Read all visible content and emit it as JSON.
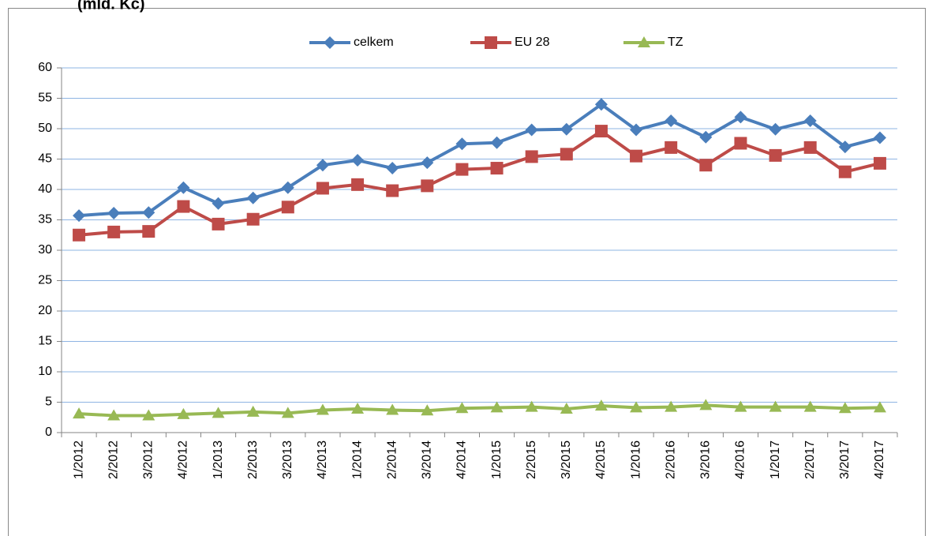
{
  "chart_data": {
    "type": "line",
    "title": "(mld. Kč)",
    "categories": [
      "1/2012",
      "2/2012",
      "3/2012",
      "4/2012",
      "1/2013",
      "2/2013",
      "3/2013",
      "4/2013",
      "1/2014",
      "2/2014",
      "3/2014",
      "4/2014",
      "1/2015",
      "2/2015",
      "3/2015",
      "4/2015",
      "1/2016",
      "2/2016",
      "3/2016",
      "4/2016",
      "1/2017",
      "2/2017",
      "3/2017",
      "4/2017"
    ],
    "series": [
      {
        "name": "celkem",
        "color": "#4a7ebb",
        "marker": "diamond",
        "values": [
          35.7,
          36.1,
          36.2,
          40.3,
          37.7,
          38.6,
          40.3,
          44.0,
          44.8,
          43.5,
          44.4,
          47.5,
          47.7,
          49.8,
          49.9,
          54.0,
          49.8,
          51.3,
          48.6,
          51.9,
          49.9,
          51.3,
          47.0,
          48.5
        ]
      },
      {
        "name": "EU 28",
        "color": "#be4b48",
        "marker": "square",
        "values": [
          32.5,
          33.0,
          33.1,
          37.2,
          34.3,
          35.1,
          37.1,
          40.2,
          40.8,
          39.8,
          40.6,
          43.3,
          43.5,
          45.4,
          45.8,
          49.6,
          45.5,
          46.9,
          44.0,
          47.6,
          45.6,
          46.9,
          42.9,
          44.3
        ]
      },
      {
        "name": "TZ",
        "color": "#98b954",
        "marker": "triangle",
        "values": [
          3.1,
          2.8,
          2.8,
          3.0,
          3.2,
          3.4,
          3.2,
          3.7,
          3.9,
          3.7,
          3.6,
          4.0,
          4.1,
          4.2,
          3.9,
          4.4,
          4.1,
          4.2,
          4.5,
          4.2,
          4.2,
          4.2,
          4.0,
          4.1
        ]
      }
    ],
    "ylim": [
      0,
      60
    ],
    "yticks": [
      0,
      5,
      10,
      15,
      20,
      25,
      30,
      35,
      40,
      45,
      50,
      55,
      60
    ],
    "grid": true,
    "legend": "top"
  }
}
